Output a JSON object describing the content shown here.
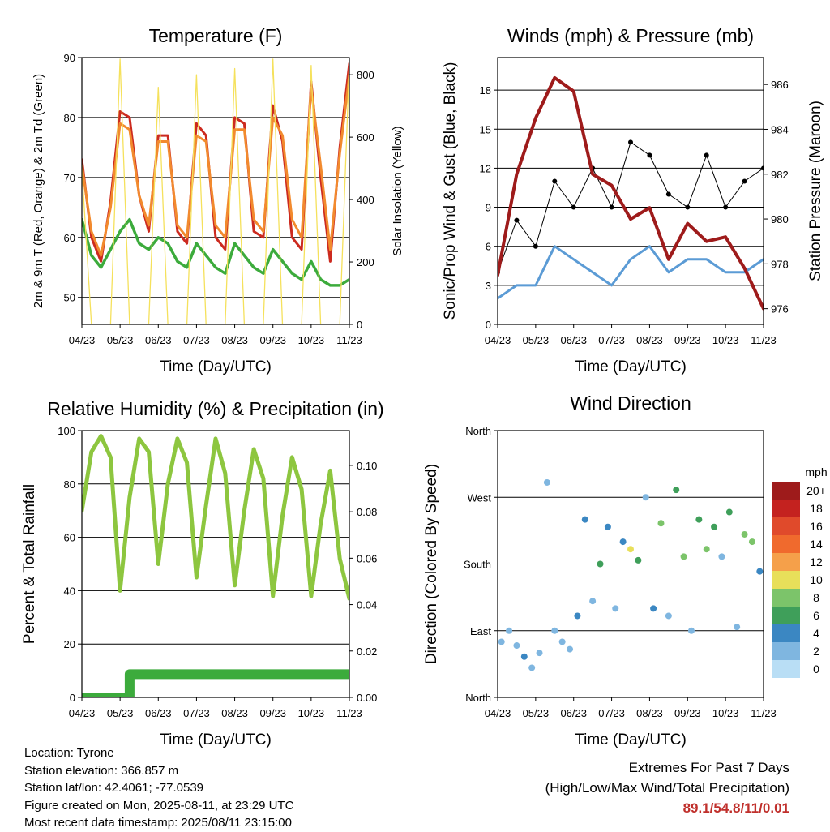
{
  "chart_data": [
    {
      "type": "line",
      "title": "Temperature (F)",
      "xlabel": "Time (Day/UTC)",
      "ylabel": "2m & 9m T (Red, Orange) & 2m Td (Green)",
      "y2label": "Solar Insolation (Yellow)",
      "x_ticks": [
        "04/23",
        "05/23",
        "06/23",
        "07/23",
        "08/23",
        "09/23",
        "10/23",
        "11/23"
      ],
      "ylim": [
        45.5,
        90
      ],
      "y_ticks": [
        "50",
        "60",
        "70",
        "80",
        "90"
      ],
      "y2lim": [
        0,
        855
      ],
      "y2_ticks": [
        "0",
        "200",
        "400",
        "600",
        "800"
      ],
      "grid": true,
      "x": [
        0.0,
        0.25,
        0.5,
        0.75,
        1.0,
        1.25,
        1.5,
        1.75,
        2.0,
        2.25,
        2.5,
        2.75,
        3.0,
        3.25,
        3.5,
        3.75,
        4.0,
        4.25,
        4.5,
        4.75,
        5.0,
        5.25,
        5.5,
        5.75,
        6.0,
        6.25,
        6.5,
        6.75,
        7.0
      ],
      "series": [
        {
          "name": "2m T",
          "color": "#cc2a1f",
          "values": [
            73,
            60,
            56,
            66,
            81,
            80,
            67,
            61,
            77,
            77,
            61,
            59,
            79,
            77,
            60,
            58,
            80,
            79,
            61,
            60,
            82,
            76,
            60,
            58,
            86,
            70,
            56,
            75,
            89
          ]
        },
        {
          "name": "9m T",
          "color": "#f28a2e",
          "values": [
            72,
            61,
            57,
            65,
            79,
            78,
            67,
            62,
            76,
            76,
            62,
            60,
            77,
            76,
            62,
            60,
            78,
            78,
            63,
            61,
            80,
            77,
            63,
            60,
            85,
            72,
            58,
            74,
            87
          ]
        },
        {
          "name": "2m Td",
          "color": "#3cab3c",
          "values": [
            63,
            57,
            55,
            58,
            61,
            63,
            59,
            58,
            60,
            59,
            56,
            55,
            59,
            57,
            55,
            54,
            59,
            57,
            55,
            54,
            58,
            56,
            54,
            53,
            56,
            53,
            52,
            52,
            53
          ]
        },
        {
          "name": "Solar Insolation",
          "color": "#f5e15c",
          "axis": "right",
          "values": [
            500,
            0,
            0,
            0,
            850,
            0,
            0,
            0,
            760,
            0,
            0,
            0,
            800,
            0,
            0,
            0,
            820,
            0,
            0,
            0,
            850,
            0,
            0,
            0,
            830,
            0,
            0,
            0,
            840
          ]
        }
      ]
    },
    {
      "type": "line",
      "title": "Winds (mph) & Pressure (mb)",
      "xlabel": "Time (Day/UTC)",
      "ylabel": "Sonic/Prop Wind & Gust (Blue, Black)",
      "y2label": "Station Pressure (Maroon)",
      "x_ticks": [
        "04/23",
        "05/23",
        "06/23",
        "07/23",
        "08/23",
        "09/23",
        "10/23",
        "11/23"
      ],
      "ylim": [
        0,
        20.5
      ],
      "y_ticks": [
        "0",
        "3",
        "6",
        "9",
        "12",
        "15",
        "18"
      ],
      "y2lim": [
        975.3,
        987.2
      ],
      "y2_ticks": [
        "976",
        "978",
        "980",
        "982",
        "984",
        "986"
      ],
      "grid": true,
      "x": [
        0.0,
        0.5,
        1.0,
        1.5,
        2.0,
        2.5,
        3.0,
        3.5,
        4.0,
        4.5,
        5.0,
        5.5,
        6.0,
        6.5,
        7.0
      ],
      "series": [
        {
          "name": "Wind",
          "color": "#5b9bd5",
          "values": [
            2,
            3,
            3,
            6,
            5,
            4,
            3,
            5,
            6,
            4,
            5,
            5,
            4,
            4,
            5
          ]
        },
        {
          "name": "Gust",
          "color": "#000000",
          "values": [
            4,
            8,
            6,
            11,
            9,
            12,
            9,
            14,
            13,
            10,
            9,
            13,
            9,
            11,
            12
          ]
        },
        {
          "name": "Station Pressure",
          "color": "#9e1b1b",
          "axis": "right",
          "values": [
            977.5,
            982,
            984.5,
            986.3,
            985.7,
            982,
            981.5,
            980,
            980.5,
            978.2,
            979.8,
            979,
            979.2,
            977.8,
            976
          ]
        }
      ]
    },
    {
      "type": "line",
      "title": "Relative Humidity (%) & Precipitation (in)",
      "xlabel": "Time (Day/UTC)",
      "ylabel": "Percent & Total Rainfall",
      "x_ticks": [
        "04/23",
        "05/23",
        "06/23",
        "07/23",
        "08/23",
        "09/23",
        "10/23",
        "11/23"
      ],
      "ylim": [
        0,
        100
      ],
      "y_ticks": [
        "0",
        "20",
        "40",
        "60",
        "80",
        "100"
      ],
      "y2lim": [
        0,
        0.115
      ],
      "y2_ticks": [
        "0.00",
        "0.02",
        "0.04",
        "0.06",
        "0.08",
        "0.10"
      ],
      "grid": true,
      "x": [
        0.0,
        0.25,
        0.5,
        0.75,
        1.0,
        1.25,
        1.5,
        1.75,
        2.0,
        2.25,
        2.5,
        2.75,
        3.0,
        3.25,
        3.5,
        3.75,
        4.0,
        4.25,
        4.5,
        4.75,
        5.0,
        5.25,
        5.5,
        5.75,
        6.0,
        6.25,
        6.5,
        6.75,
        7.0
      ],
      "series": [
        {
          "name": "Relative Humidity",
          "color": "#8dc63f",
          "values": [
            70,
            92,
            98,
            90,
            40,
            75,
            97,
            92,
            50,
            80,
            97,
            88,
            45,
            72,
            97,
            84,
            42,
            70,
            93,
            82,
            38,
            68,
            90,
            78,
            38,
            65,
            85,
            52,
            37
          ]
        },
        {
          "name": "Total Precipitation",
          "color": "#3cab3c",
          "axis": "right",
          "step": true,
          "values": [
            0,
            0,
            0,
            0,
            0,
            0.01,
            0.01,
            0.01,
            0.01,
            0.01,
            0.01,
            0.01,
            0.01,
            0.01,
            0.01,
            0.01,
            0.01,
            0.01,
            0.01,
            0.01,
            0.01,
            0.01,
            0.01,
            0.01,
            0.01,
            0.01,
            0.01,
            0.01,
            0.01
          ]
        }
      ]
    },
    {
      "type": "scatter",
      "title": "Wind Direction",
      "xlabel": "Time (Day/UTC)",
      "ylabel": "Direction (Colored By Speed)",
      "x_ticks": [
        "04/23",
        "05/23",
        "06/23",
        "07/23",
        "08/23",
        "09/23",
        "10/23",
        "11/23"
      ],
      "y_ticks": [
        "North",
        "East",
        "South",
        "West",
        "North"
      ],
      "ylim": [
        0,
        360
      ],
      "grid": true,
      "colorbar": {
        "title": "mph",
        "labels": [
          "20+",
          "18",
          "16",
          "14",
          "12",
          "10",
          "8",
          "6",
          "4",
          "2",
          "0"
        ],
        "colors": [
          "#9e1b1b",
          "#c4221f",
          "#e04a2b",
          "#f06a2d",
          "#f5a04a",
          "#e8df5a",
          "#7cc46a",
          "#3f9f5a",
          "#3b87c2",
          "#7fb6e0",
          "#b9def5"
        ]
      },
      "x": [
        0.1,
        0.3,
        0.5,
        0.7,
        0.9,
        1.1,
        1.3,
        1.5,
        1.7,
        1.9,
        2.1,
        2.3,
        2.5,
        2.7,
        2.9,
        3.1,
        3.3,
        3.5,
        3.7,
        3.9,
        4.1,
        4.3,
        4.5,
        4.7,
        4.9,
        5.1,
        5.3,
        5.5,
        5.7,
        5.9,
        6.1,
        6.3,
        6.5,
        6.7,
        6.9
      ],
      "values": [
        75,
        90,
        70,
        55,
        40,
        60,
        290,
        90,
        75,
        65,
        110,
        240,
        130,
        180,
        230,
        120,
        210,
        200,
        185,
        270,
        120,
        235,
        110,
        280,
        190,
        90,
        240,
        200,
        230,
        190,
        250,
        95,
        220,
        210,
        170
      ],
      "speeds": [
        3,
        2,
        3,
        4,
        3,
        2,
        2,
        3,
        2,
        3,
        5,
        4,
        3,
        6,
        4,
        3,
        5,
        10,
        7,
        3,
        4,
        8,
        3,
        6,
        9,
        3,
        7,
        8,
        6,
        3,
        7,
        2,
        9,
        8,
        5
      ]
    }
  ],
  "footer": {
    "location": "Location: Tyrone",
    "elevation": "Station elevation: 366.857 m",
    "latlon": "Station lat/lon: 42.4061; -77.0539",
    "created": "Figure created on Mon, 2025-08-11, at 23:29 UTC",
    "recent": "Most recent data timestamp: 2025/08/11 23:15:00"
  },
  "extremes": {
    "title": "Extremes For Past 7 Days",
    "subtitle": "(High/Low/Max Wind/Total Precipitation)",
    "values": "89.1/54.8/11/0.01"
  }
}
